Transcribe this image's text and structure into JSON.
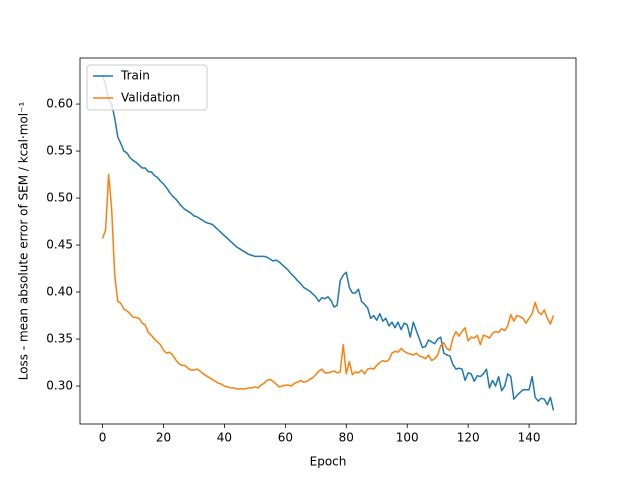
{
  "chart_data": {
    "type": "line",
    "xlabel": "Epoch",
    "ylabel": "Loss - mean absolute error of SEM / kcal·mol⁻¹",
    "x": [
      0,
      1,
      2,
      3,
      4,
      5,
      6,
      7,
      8,
      9,
      10,
      11,
      12,
      13,
      14,
      15,
      16,
      17,
      18,
      19,
      20,
      21,
      22,
      23,
      24,
      25,
      26,
      27,
      28,
      29,
      30,
      31,
      32,
      33,
      34,
      35,
      36,
      37,
      38,
      39,
      40,
      41,
      42,
      43,
      44,
      45,
      46,
      47,
      48,
      49,
      50,
      51,
      52,
      53,
      54,
      55,
      56,
      57,
      58,
      59,
      60,
      61,
      62,
      63,
      64,
      65,
      66,
      67,
      68,
      69,
      70,
      71,
      72,
      73,
      74,
      75,
      76,
      77,
      78,
      79,
      80,
      81,
      82,
      83,
      84,
      85,
      86,
      87,
      88,
      89,
      90,
      91,
      92,
      93,
      94,
      95,
      96,
      97,
      98,
      99,
      100,
      101,
      102,
      103,
      104,
      105,
      106,
      107,
      108,
      109,
      110,
      111,
      112,
      113,
      114,
      115,
      116,
      117,
      118,
      119,
      120,
      121,
      122,
      123,
      124,
      125,
      126,
      127,
      128,
      129,
      130,
      131,
      132,
      133,
      134,
      135,
      136,
      137,
      138,
      139,
      140,
      141,
      142,
      143,
      144,
      145,
      146,
      147,
      148
    ],
    "series": [
      {
        "name": "Train",
        "color": "#1f77b4",
        "values": [
          0.631,
          0.62,
          0.605,
          0.6,
          0.585,
          0.565,
          0.558,
          0.55,
          0.548,
          0.543,
          0.54,
          0.538,
          0.535,
          0.532,
          0.532,
          0.528,
          0.528,
          0.524,
          0.522,
          0.518,
          0.515,
          0.511,
          0.506,
          0.502,
          0.499,
          0.495,
          0.491,
          0.488,
          0.486,
          0.484,
          0.481,
          0.48,
          0.478,
          0.476,
          0.474,
          0.473,
          0.472,
          0.469,
          0.466,
          0.463,
          0.46,
          0.457,
          0.454,
          0.451,
          0.448,
          0.446,
          0.444,
          0.442,
          0.44,
          0.439,
          0.438,
          0.438,
          0.438,
          0.438,
          0.437,
          0.435,
          0.433,
          0.434,
          0.432,
          0.429,
          0.426,
          0.423,
          0.419,
          0.416,
          0.412,
          0.409,
          0.405,
          0.403,
          0.401,
          0.398,
          0.395,
          0.39,
          0.394,
          0.393,
          0.395,
          0.391,
          0.384,
          0.386,
          0.412,
          0.418,
          0.421,
          0.405,
          0.399,
          0.399,
          0.403,
          0.39,
          0.387,
          0.383,
          0.372,
          0.375,
          0.37,
          0.377,
          0.369,
          0.372,
          0.364,
          0.368,
          0.362,
          0.368,
          0.36,
          0.367,
          0.365,
          0.352,
          0.368,
          0.359,
          0.35,
          0.341,
          0.342,
          0.349,
          0.347,
          0.345,
          0.35,
          0.352,
          0.335,
          0.333,
          0.332,
          0.323,
          0.318,
          0.319,
          0.318,
          0.306,
          0.314,
          0.313,
          0.305,
          0.311,
          0.31,
          0.313,
          0.318,
          0.298,
          0.306,
          0.3,
          0.31,
          0.295,
          0.3,
          0.313,
          0.31,
          0.286,
          0.29,
          0.293,
          0.296,
          0.296,
          0.296,
          0.31,
          0.288,
          0.284,
          0.287,
          0.286,
          0.28,
          0.288,
          0.274
        ]
      },
      {
        "name": "Validation",
        "color": "#ff7f0e",
        "values": [
          0.457,
          0.466,
          0.525,
          0.488,
          0.418,
          0.39,
          0.388,
          0.382,
          0.38,
          0.377,
          0.373,
          0.373,
          0.372,
          0.367,
          0.365,
          0.357,
          0.354,
          0.35,
          0.347,
          0.344,
          0.338,
          0.335,
          0.336,
          0.333,
          0.328,
          0.324,
          0.322,
          0.322,
          0.319,
          0.317,
          0.317,
          0.318,
          0.316,
          0.313,
          0.311,
          0.309,
          0.307,
          0.305,
          0.303,
          0.302,
          0.3,
          0.299,
          0.298,
          0.298,
          0.297,
          0.297,
          0.297,
          0.297,
          0.298,
          0.298,
          0.299,
          0.298,
          0.301,
          0.303,
          0.306,
          0.307,
          0.305,
          0.302,
          0.299,
          0.3,
          0.301,
          0.301,
          0.3,
          0.303,
          0.304,
          0.306,
          0.304,
          0.305,
          0.307,
          0.309,
          0.312,
          0.316,
          0.318,
          0.314,
          0.314,
          0.315,
          0.316,
          0.314,
          0.315,
          0.344,
          0.313,
          0.326,
          0.312,
          0.315,
          0.314,
          0.317,
          0.313,
          0.318,
          0.319,
          0.318,
          0.322,
          0.325,
          0.327,
          0.326,
          0.328,
          0.335,
          0.337,
          0.336,
          0.34,
          0.337,
          0.335,
          0.334,
          0.333,
          0.335,
          0.332,
          0.331,
          0.329,
          0.333,
          0.327,
          0.329,
          0.333,
          0.343,
          0.346,
          0.34,
          0.338,
          0.351,
          0.358,
          0.353,
          0.358,
          0.362,
          0.348,
          0.352,
          0.351,
          0.354,
          0.344,
          0.354,
          0.353,
          0.351,
          0.356,
          0.358,
          0.357,
          0.361,
          0.359,
          0.364,
          0.376,
          0.369,
          0.375,
          0.374,
          0.372,
          0.367,
          0.372,
          0.377,
          0.389,
          0.379,
          0.376,
          0.381,
          0.372,
          0.366,
          0.375
        ]
      }
    ],
    "xlim": [
      -7.4,
      155.4
    ],
    "ylim": [
      0.2596,
      0.649
    ],
    "xticks": [
      0,
      20,
      40,
      60,
      80,
      100,
      120,
      140
    ],
    "yticks": [
      {
        "value": 0.3,
        "label": "0.30"
      },
      {
        "value": 0.35,
        "label": "0.35"
      },
      {
        "value": 0.4,
        "label": "0.40"
      },
      {
        "value": 0.45,
        "label": "0.45"
      },
      {
        "value": 0.5,
        "label": "0.50"
      },
      {
        "value": 0.55,
        "label": "0.55"
      },
      {
        "value": 0.6,
        "label": "0.60"
      }
    ],
    "legend": "upper left",
    "grid": false
  }
}
